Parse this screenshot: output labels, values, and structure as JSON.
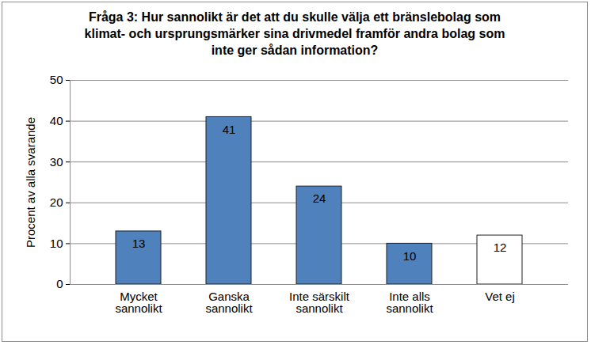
{
  "chart_data": {
    "type": "bar",
    "title": "Fråga 3: Hur sannolikt är det att du skulle välja ett bränslebolag som klimat- och ursprungsmärker sina drivmedel framför andra bolag som inte ger sådan information?",
    "y_label": "Procent av alla svarande",
    "categories": [
      "Mycket sannolikt",
      "Ganska sannolikt",
      "Inte särskilt sannolikt",
      "Inte alls sannolikt",
      "Vet ej"
    ],
    "values": [
      13,
      41,
      24,
      10,
      12
    ],
    "colors": [
      "#4f81bd",
      "#4f81bd",
      "#4f81bd",
      "#4f81bd",
      "#ffffff"
    ],
    "ylim": [
      0,
      50
    ],
    "yticks": [
      0,
      10,
      20,
      30,
      40,
      50
    ],
    "grid": true,
    "data_labels": true
  }
}
